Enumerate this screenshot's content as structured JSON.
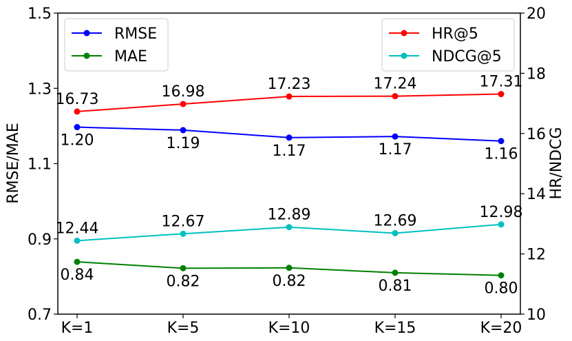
{
  "chart_data": {
    "type": "line",
    "categories": [
      "K=1",
      "K=5",
      "K=10",
      "K=15",
      "K=20"
    ],
    "left_axis": {
      "label": "RMSE/MAE",
      "ylim": [
        0.7,
        1.5
      ],
      "ticks": [
        "0.7",
        "0.9",
        "1.1",
        "1.3",
        "1.5"
      ]
    },
    "right_axis": {
      "label": "HR/NDCG",
      "ylim": [
        10,
        20
      ],
      "ticks": [
        "10",
        "12",
        "14",
        "16",
        "18",
        "20"
      ]
    },
    "grid": false,
    "series": [
      {
        "name": "RMSE",
        "axis": "left",
        "color": "#0000ff",
        "values": [
          1.197,
          1.189,
          1.169,
          1.172,
          1.16
        ],
        "labels": [
          "1.20",
          "1.19",
          "1.17",
          "1.17",
          "1.16"
        ],
        "label_position": "below"
      },
      {
        "name": "MAE",
        "axis": "left",
        "color": "#008000",
        "values": [
          0.839,
          0.822,
          0.823,
          0.81,
          0.803
        ],
        "labels": [
          "0.84",
          "0.82",
          "0.82",
          "0.81",
          "0.80"
        ],
        "label_position": "below"
      },
      {
        "name": "HR@5",
        "axis": "right",
        "color": "#ff0000",
        "values": [
          16.73,
          16.98,
          17.23,
          17.24,
          17.31
        ],
        "labels": [
          "16.73",
          "16.98",
          "17.23",
          "17.24",
          "17.31"
        ],
        "label_position": "above"
      },
      {
        "name": "NDCG@5",
        "axis": "right",
        "color": "#00bfbf",
        "values": [
          12.44,
          12.67,
          12.89,
          12.69,
          12.98
        ],
        "labels": [
          "12.44",
          "12.67",
          "12.89",
          "12.69",
          "12.98"
        ],
        "label_position": "above"
      }
    ],
    "legends": [
      {
        "placement": "top-left",
        "series": [
          "RMSE",
          "MAE"
        ]
      },
      {
        "placement": "top-right",
        "series": [
          "HR@5",
          "NDCG@5"
        ]
      }
    ]
  }
}
